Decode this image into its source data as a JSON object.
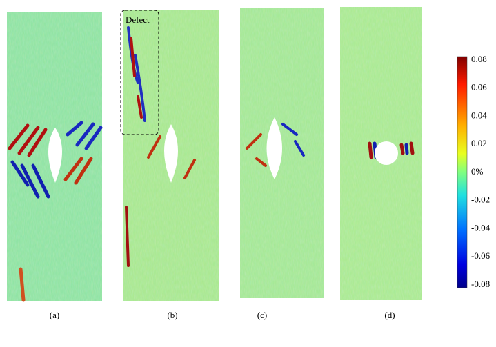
{
  "annotation": "Defect",
  "panels": [
    {
      "label": "(a)"
    },
    {
      "label": "(b)"
    },
    {
      "label": "(c)"
    },
    {
      "label": "(d)"
    }
  ],
  "colorbar": {
    "ticks": [
      "0.08",
      "0.06",
      "0.04",
      "0.02",
      "0%",
      "-0.02",
      "-0.04",
      "-0.06",
      "-0.08"
    ]
  }
}
